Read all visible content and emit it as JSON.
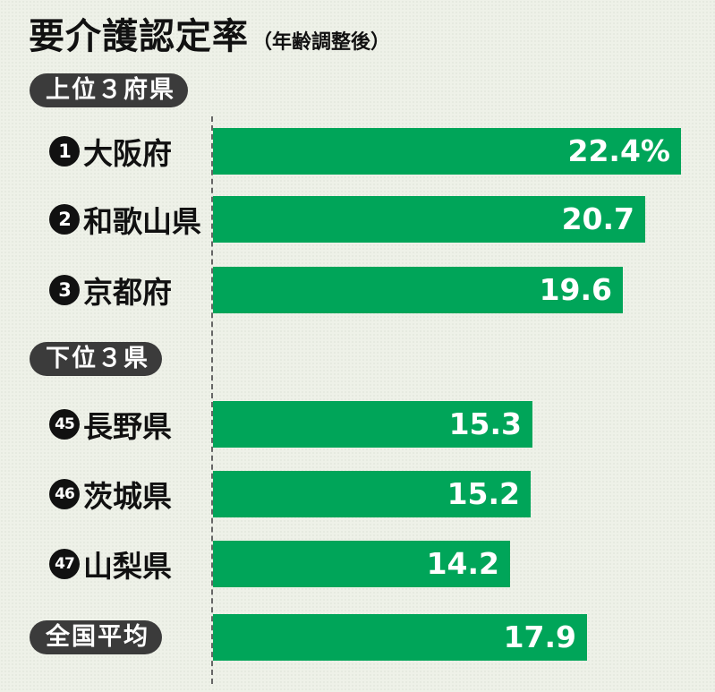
{
  "title": "要介護認定率",
  "subtitle": "（年齢調整後）",
  "chart_data": {
    "type": "bar",
    "orientation": "horizontal",
    "xlim": [
      0,
      22.4
    ],
    "unit": "%",
    "groups": [
      {
        "label": "上位３府県",
        "items": [
          {
            "rank": "1",
            "name": "大阪府",
            "value": 22.4,
            "label": "22.4%"
          },
          {
            "rank": "2",
            "name": "和歌山県",
            "value": 20.7,
            "label": "20.7"
          },
          {
            "rank": "3",
            "name": "京都府",
            "value": 19.6,
            "label": "19.6"
          }
        ]
      },
      {
        "label": "下位３県",
        "items": [
          {
            "rank": "45",
            "name": "長野県",
            "value": 15.3,
            "label": "15.3"
          },
          {
            "rank": "46",
            "name": "茨城県",
            "value": 15.2,
            "label": "15.2"
          },
          {
            "rank": "47",
            "name": "山梨県",
            "value": 14.2,
            "label": "14.2"
          }
        ]
      }
    ],
    "average": {
      "label": "全国平均",
      "value": 17.9,
      "text": "17.9"
    },
    "colors": {
      "bar": "#00a559",
      "pill": "#3b3b3b",
      "text": "#111111"
    }
  }
}
